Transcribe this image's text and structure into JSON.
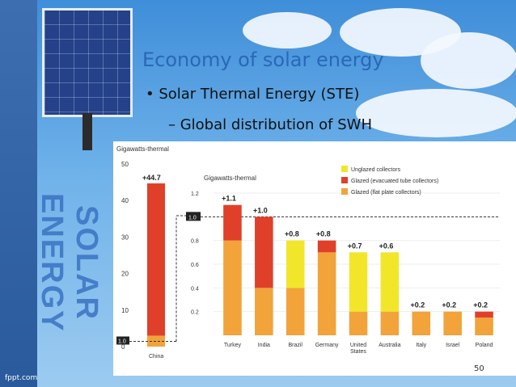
{
  "slide": {
    "title": "Economy of solar energy",
    "bullet1": "• Solar Thermal Energy (STE)",
    "bullet2": "– Global distribution of SWH",
    "vertical_text": "SOLAR ENERGY",
    "page_number": "50",
    "footer": "fppt.com"
  },
  "chart_data": [
    {
      "type": "bar",
      "ylabel": "Gigawatts-thermal",
      "ylim": [
        0,
        50
      ],
      "yticks": [
        "0",
        "10",
        "20",
        "30",
        "40",
        "50"
      ],
      "categories": [
        "China"
      ],
      "series": [
        {
          "name": "Glazed (flat plate collectors)",
          "values": [
            3.0
          ]
        },
        {
          "name": "Glazed (evacuated tube collectors)",
          "values": [
            41.7
          ]
        }
      ],
      "totals_labels": [
        "+44.7"
      ],
      "reference_label": "1.0",
      "colors": {
        "flat": "#f2a33a",
        "evac": "#e0402a",
        "unglazed": "#f2e62a"
      }
    },
    {
      "type": "bar",
      "ylabel": "Gigawatts-thermal",
      "ylim": [
        0,
        1.2
      ],
      "yticks": [
        "0.2",
        "0.4",
        "0.6",
        "0.8",
        "1.0",
        "1.2"
      ],
      "categories": [
        "Turkey",
        "India",
        "Brazil",
        "Germany",
        "United States",
        "Australia",
        "Italy",
        "Israel",
        "Poland"
      ],
      "series": [
        {
          "name": "Glazed (flat plate collectors)",
          "values": [
            0.8,
            0.4,
            0.4,
            0.7,
            0.2,
            0.2,
            0.2,
            0.2,
            0.15
          ]
        },
        {
          "name": "Glazed (evacuated tube collectors)",
          "values": [
            0.3,
            0.6,
            0.0,
            0.1,
            0.0,
            0.0,
            0.0,
            0.0,
            0.05
          ]
        },
        {
          "name": "Unglazed collectors",
          "values": [
            0.0,
            0.0,
            0.4,
            0.0,
            0.5,
            0.5,
            0.0,
            0.0,
            0.0
          ]
        }
      ],
      "totals_labels": [
        "+1.1",
        "+1.0",
        "+0.8",
        "+0.8",
        "+0.7",
        "+0.6",
        "+0.2",
        "+0.2",
        "+0.2"
      ],
      "reference_label": "1.0",
      "legend": [
        "Unglazed collectors",
        "Glazed (evacuated tube collectors)",
        "Glazed (flat plate collectors)"
      ],
      "legend_position": "top-right"
    }
  ]
}
